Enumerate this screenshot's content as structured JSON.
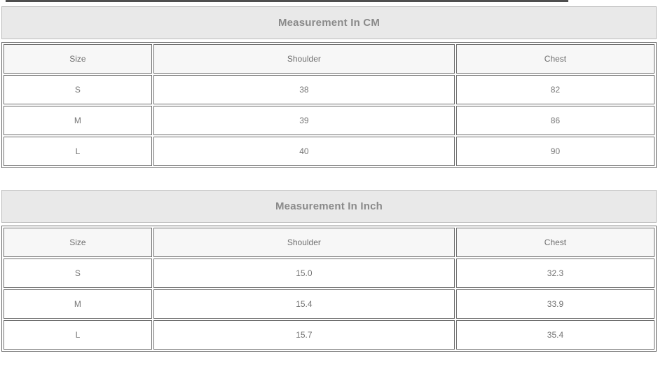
{
  "page": {
    "background": "#ffffff",
    "top_divider_color": "#4f4f4f"
  },
  "colors": {
    "cell_border": "#6e6e6e",
    "title_border": "#bdbdbd",
    "title_background": "#e9e9e9",
    "title_text": "#8a8a8a",
    "header_cell_background": "#f7f7f7",
    "header_text": "#6e6e6e",
    "cell_text": "#757575"
  },
  "tables": [
    {
      "title": "Measurement In CM",
      "columns": [
        "Size",
        "Shoulder",
        "Chest"
      ],
      "rows": [
        [
          "S",
          "38",
          "82"
        ],
        [
          "M",
          "39",
          "86"
        ],
        [
          "L",
          "40",
          "90"
        ]
      ]
    },
    {
      "title": "Measurement In Inch",
      "columns": [
        "Size",
        "Shoulder",
        "Chest"
      ],
      "rows": [
        [
          "S",
          "15.0",
          "32.3"
        ],
        [
          "M",
          "15.4",
          "33.9"
        ],
        [
          "L",
          "15.7",
          "35.4"
        ]
      ]
    }
  ]
}
